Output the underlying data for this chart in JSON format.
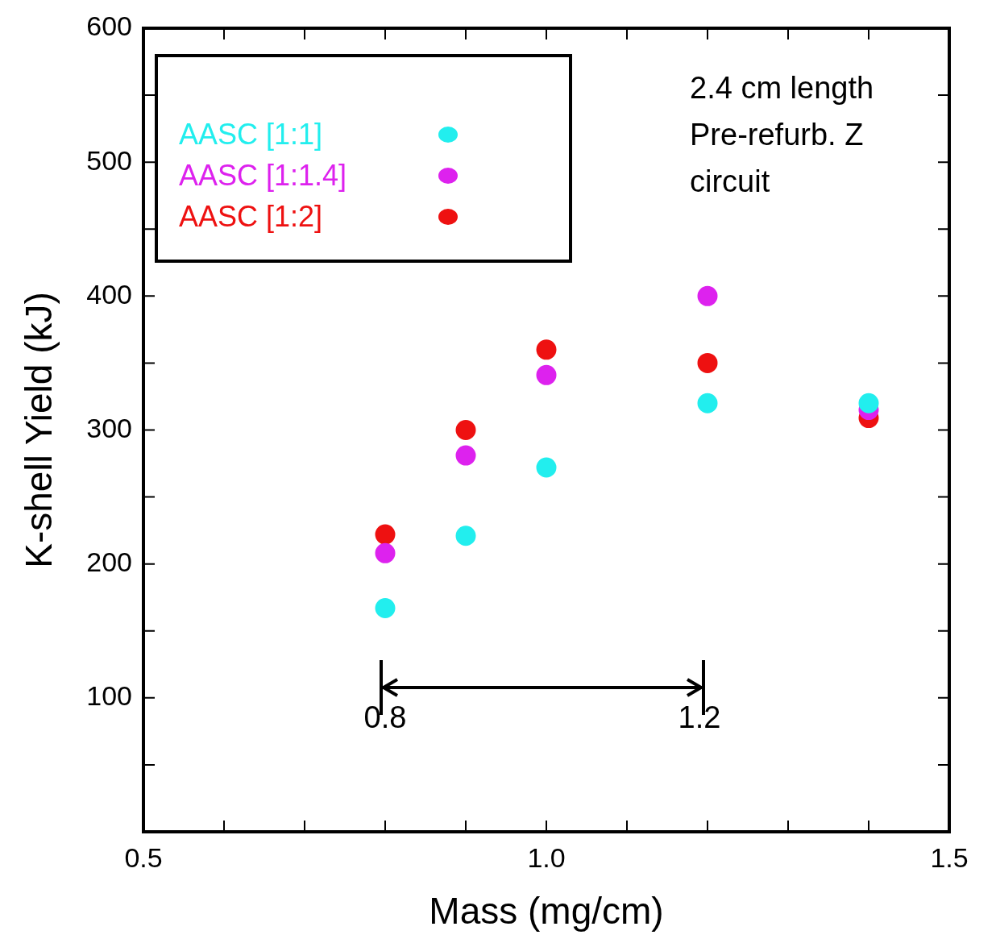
{
  "chart_data": {
    "type": "scatter",
    "xlabel": "Mass (mg/cm)",
    "ylabel": "K-shell Yield (kJ)",
    "xlim": [
      0.5,
      1.5
    ],
    "xticks": [
      0.5,
      {
        "value": 0.6,
        "label": null
      },
      {
        "value": 0.7,
        "label": null
      },
      {
        "value": 0.8,
        "label": null
      },
      {
        "value": 0.9,
        "label": null
      },
      "1.0",
      {
        "value": 1.1,
        "label": null
      },
      {
        "value": 1.2,
        "label": null
      },
      {
        "value": 1.3,
        "label": null
      },
      {
        "value": 1.4,
        "label": null
      },
      1.5
    ],
    "ylim": [
      0,
      600
    ],
    "yticks": [
      {
        "value": 50,
        "label": null
      },
      100,
      {
        "value": 150,
        "label": null
      },
      200,
      {
        "value": 250,
        "label": null
      },
      300,
      {
        "value": 350,
        "label": null
      },
      400,
      {
        "value": 450,
        "label": null
      },
      500,
      {
        "value": 550,
        "label": null
      },
      600
    ],
    "x": [
      0.8,
      0.9,
      1.0,
      1.2,
      1.4
    ],
    "series": [
      {
        "name": "AASC [1:1]",
        "color": "#22eeee",
        "values": [
          167,
          221,
          272,
          320,
          320
        ]
      },
      {
        "name": "AASC [1:1.4]",
        "color": "#dd22ee",
        "values": [
          208,
          281,
          341,
          400,
          315
        ]
      },
      {
        "name": "AASC [1:2]",
        "color": "#ee1111",
        "values": [
          222,
          300,
          360,
          350,
          309
        ]
      }
    ],
    "marker": "circle",
    "grid": false,
    "legend": "top left",
    "annotations": [
      "2.4 cm length Pre-refurb. Z circuit",
      "0.8",
      "1.2"
    ]
  }
}
